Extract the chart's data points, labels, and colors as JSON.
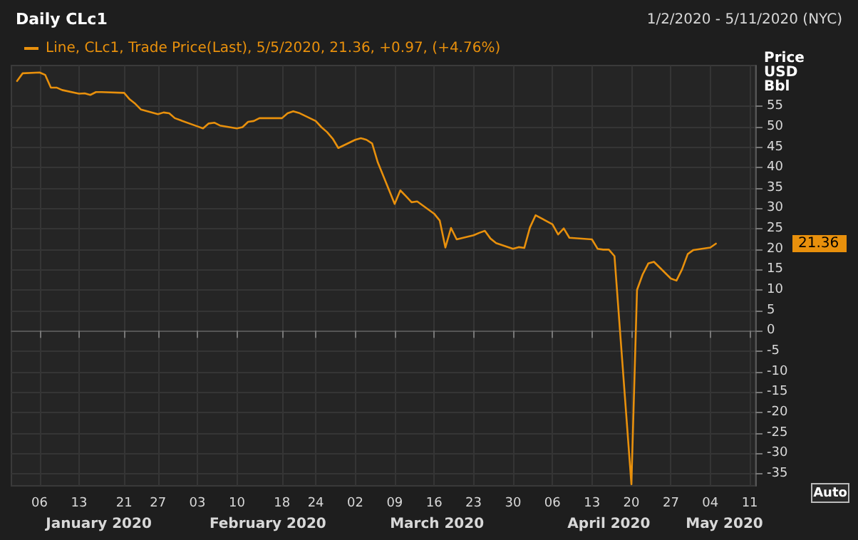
{
  "chart_data": {
    "type": "line",
    "title": "Daily CLc1",
    "subtitle": "1/2/2020 - 5/11/2020 (NYC)",
    "ylabel": "Price USD Bbl",
    "x": [
      "2020-01-02",
      "2020-01-03",
      "2020-01-06",
      "2020-01-07",
      "2020-01-08",
      "2020-01-09",
      "2020-01-10",
      "2020-01-13",
      "2020-01-14",
      "2020-01-15",
      "2020-01-16",
      "2020-01-17",
      "2020-01-21",
      "2020-01-22",
      "2020-01-23",
      "2020-01-24",
      "2020-01-27",
      "2020-01-28",
      "2020-01-29",
      "2020-01-30",
      "2020-01-31",
      "2020-02-03",
      "2020-02-04",
      "2020-02-05",
      "2020-02-06",
      "2020-02-07",
      "2020-02-10",
      "2020-02-11",
      "2020-02-12",
      "2020-02-13",
      "2020-02-14",
      "2020-02-18",
      "2020-02-19",
      "2020-02-20",
      "2020-02-21",
      "2020-02-24",
      "2020-02-25",
      "2020-02-26",
      "2020-02-27",
      "2020-02-28",
      "2020-03-02",
      "2020-03-03",
      "2020-03-04",
      "2020-03-05",
      "2020-03-06",
      "2020-03-09",
      "2020-03-10",
      "2020-03-11",
      "2020-03-12",
      "2020-03-13",
      "2020-03-16",
      "2020-03-17",
      "2020-03-18",
      "2020-03-19",
      "2020-03-20",
      "2020-03-23",
      "2020-03-24",
      "2020-03-25",
      "2020-03-26",
      "2020-03-27",
      "2020-03-30",
      "2020-03-31",
      "2020-04-01",
      "2020-04-02",
      "2020-04-03",
      "2020-04-06",
      "2020-04-07",
      "2020-04-08",
      "2020-04-09",
      "2020-04-13",
      "2020-04-14",
      "2020-04-15",
      "2020-04-16",
      "2020-04-17",
      "2020-04-20",
      "2020-04-21",
      "2020-04-22",
      "2020-04-23",
      "2020-04-24",
      "2020-04-27",
      "2020-04-28",
      "2020-04-29",
      "2020-04-30",
      "2020-05-01",
      "2020-05-04",
      "2020-05-05"
    ],
    "series": [
      {
        "name": "Line, CLc1, Trade Price(Last), 5/5/2020, 21.36, +0.97, (+4.76%)",
        "color": "#e8900c",
        "values": [
          61.2,
          63.1,
          63.3,
          62.7,
          59.6,
          59.6,
          59.0,
          58.1,
          58.2,
          57.8,
          58.5,
          58.5,
          58.3,
          56.7,
          55.6,
          54.2,
          53.1,
          53.5,
          53.3,
          52.1,
          51.6,
          50.1,
          49.6,
          50.8,
          51.0,
          50.3,
          49.6,
          49.9,
          51.2,
          51.4,
          52.1,
          52.1,
          53.3,
          53.8,
          53.4,
          51.4,
          49.9,
          48.7,
          47.1,
          44.8,
          46.8,
          47.2,
          46.8,
          45.9,
          41.3,
          31.1,
          34.4,
          33.0,
          31.5,
          31.7,
          28.7,
          27.0,
          20.4,
          25.2,
          22.4,
          23.4,
          24.0,
          24.5,
          22.6,
          21.5,
          20.1,
          20.5,
          20.3,
          25.3,
          28.3,
          26.1,
          23.6,
          25.1,
          22.8,
          22.4,
          20.1,
          19.9,
          19.9,
          18.3,
          -37.6,
          10.0,
          13.8,
          16.5,
          16.9,
          12.8,
          12.3,
          15.1,
          18.8,
          19.8,
          20.4,
          21.36
        ]
      }
    ],
    "xlim": [
      "2020-01-01",
      "2020-05-12"
    ],
    "xticks": [
      {
        "value": "2020-01-06",
        "label": "06"
      },
      {
        "value": "2020-01-13",
        "label": "13"
      },
      {
        "value": "2020-01-21",
        "label": "21"
      },
      {
        "value": "2020-01-27",
        "label": "27"
      },
      {
        "value": "2020-02-03",
        "label": "03"
      },
      {
        "value": "2020-02-10",
        "label": "10"
      },
      {
        "value": "2020-02-18",
        "label": "18"
      },
      {
        "value": "2020-02-24",
        "label": "24"
      },
      {
        "value": "2020-03-02",
        "label": "02"
      },
      {
        "value": "2020-03-09",
        "label": "09"
      },
      {
        "value": "2020-03-16",
        "label": "16"
      },
      {
        "value": "2020-03-23",
        "label": "23"
      },
      {
        "value": "2020-03-30",
        "label": "30"
      },
      {
        "value": "2020-04-06",
        "label": "06"
      },
      {
        "value": "2020-04-13",
        "label": "13"
      },
      {
        "value": "2020-04-20",
        "label": "20"
      },
      {
        "value": "2020-04-27",
        "label": "27"
      },
      {
        "value": "2020-05-04",
        "label": "04"
      },
      {
        "value": "2020-05-11",
        "label": "11"
      }
    ],
    "ylim": [
      -38,
      65
    ],
    "yticks": [
      -35,
      -30,
      -25,
      -20,
      -15,
      -10,
      -5,
      0,
      5,
      10,
      15,
      20,
      25,
      30,
      35,
      40,
      45,
      50,
      55
    ],
    "grid": true,
    "legend": "top left",
    "marker": "none",
    "line_style": "solid",
    "annotations": [
      "January 2020",
      "February 2020",
      "March 2020",
      "April 2020",
      "May 2020",
      "21.36",
      "Auto"
    ]
  }
}
